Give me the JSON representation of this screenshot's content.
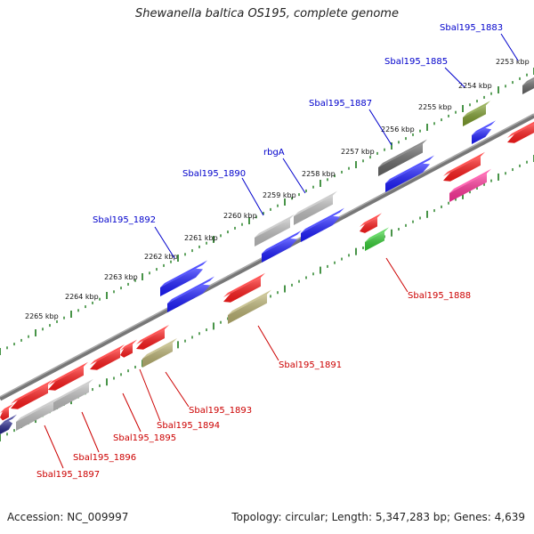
{
  "title": "Shewanella baltica OS195, complete genome",
  "footer": {
    "accession": "Accession: NC_009997",
    "stats": "Topology: circular; Length: 5,347,283 bp; Genes: 4,639"
  },
  "ticks": [
    "2253 kbp",
    "2254 kbp",
    "2255 kbp",
    "2256 kbp",
    "2257 kbp",
    "2258 kbp",
    "2259 kbp",
    "2260 kbp",
    "2261 kbp",
    "2262 kbp",
    "2263 kbp",
    "2264 kbp",
    "2265 kbp"
  ],
  "forward_labels": [
    "Sbal195_1883",
    "Sbal195_1885",
    "Sbal195_1887",
    "rbgA",
    "Sbal195_1890",
    "Sbal195_1892"
  ],
  "reverse_labels": [
    "Sbal195_1888",
    "Sbal195_1891",
    "Sbal195_1893",
    "Sbal195_1894",
    "Sbal195_1895",
    "Sbal195_1896",
    "Sbal195_1897"
  ],
  "colors": {
    "forward_label": "#0000cc",
    "reverse_label": "#cc0000",
    "tick": "#1a7a1a",
    "backbone": "#888888",
    "red": "#ff1a1a",
    "blue": "#1a1aff",
    "grey": "#bdbdbd",
    "dark_grey": "#666666",
    "olive": "#b8b070",
    "olive_green": "#7a9a2a",
    "green": "#33cc33",
    "pink": "#ff3399",
    "navy": "#222288"
  }
}
